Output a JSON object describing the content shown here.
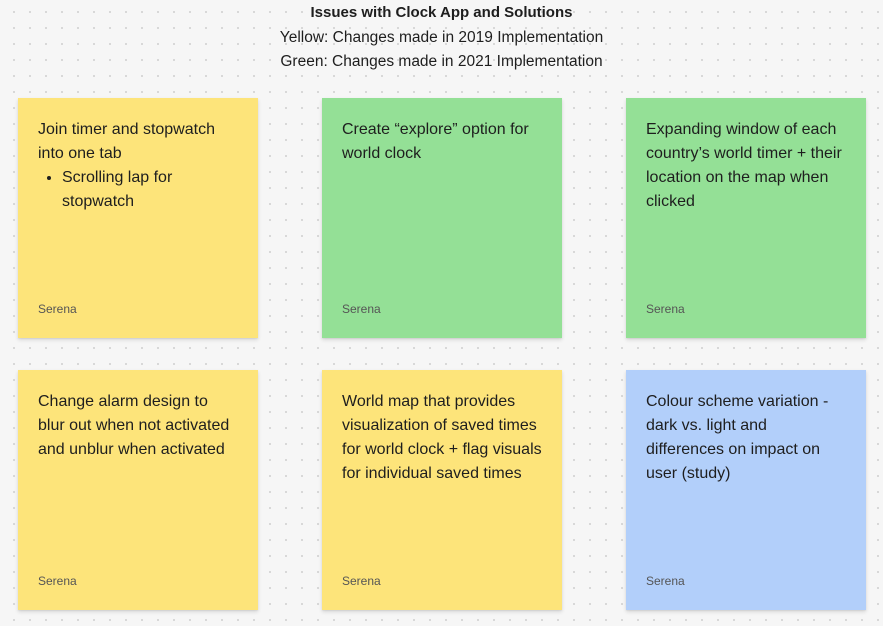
{
  "header": {
    "title": "Issues with Clock App and Solutions",
    "legend_yellow": "Yellow: Changes made in 2019 Implementation",
    "legend_green": "Green: Changes made in 2021 Implementation"
  },
  "colors": {
    "yellow": "#fde47a",
    "green": "#94e096",
    "blue": "#b2cffa"
  },
  "notes": [
    {
      "color": "yellow",
      "text": "Join timer and stopwatch into one tab",
      "bullet": "Scrolling lap for stopwatch",
      "author": "Serena"
    },
    {
      "color": "green",
      "text": "Create “explore” option for world clock",
      "author": "Serena"
    },
    {
      "color": "green",
      "text": "Expanding window of each country’s world timer + their location on the map when clicked",
      "author": "Serena"
    },
    {
      "color": "yellow",
      "text": "Change alarm design to blur out when not activated and unblur when activated",
      "author": "Serena"
    },
    {
      "color": "yellow",
      "text": "World map that provides visualization of saved times for world clock + flag visuals for individual saved times",
      "author": "Serena"
    },
    {
      "color": "blue",
      "text": "Colour scheme variation - dark vs. light and differences on impact on user (study)",
      "author": "Serena"
    }
  ]
}
